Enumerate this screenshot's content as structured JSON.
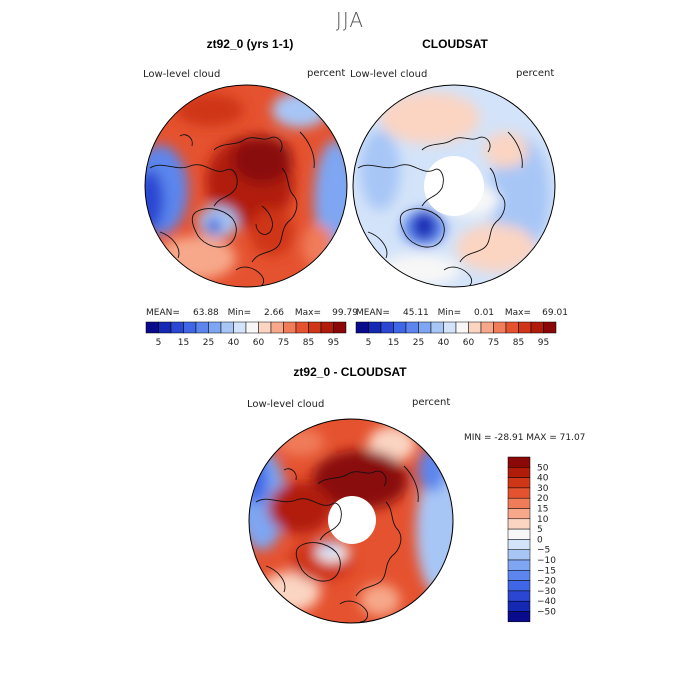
{
  "season_title": "JJA",
  "chart_data": [
    {
      "type": "heatmap",
      "projection": "polar",
      "title": "zt92_0 (yrs 1-1)",
      "field_label": "Low-level cloud",
      "units": "percent",
      "stats": {
        "mean_label": "MEAN=",
        "mean": "63.88",
        "min_label": "Min=",
        "min": "2.66",
        "max_label": "Max=",
        "max": "99.79"
      },
      "colorbar": {
        "levels": [
          5,
          10,
          15,
          20,
          25,
          30,
          40,
          50,
          60,
          70,
          75,
          80,
          85,
          90,
          95
        ],
        "tick_labels": [
          "5",
          "15",
          "25",
          "40",
          "60",
          "75",
          "85",
          "95"
        ],
        "colors": [
          "#0a0a8c",
          "#1428b4",
          "#2a46d2",
          "#3f66e6",
          "#5c86ee",
          "#7ea6f2",
          "#a7c6f6",
          "#d3e3f9",
          "#f7f7f7",
          "#fbd4c2",
          "#f7a88a",
          "#f07c5a",
          "#e5522f",
          "#cf3517",
          "#b11c0a",
          "#8a0808"
        ]
      }
    },
    {
      "type": "heatmap",
      "projection": "polar",
      "title": "CLOUDSAT",
      "field_label": "Low-level cloud",
      "units": "percent",
      "stats": {
        "mean_label": "MEAN=",
        "mean": "45.11",
        "min_label": "Min=",
        "min": "0.01",
        "max_label": "Max=",
        "max": "69.01"
      },
      "colorbar": {
        "levels": [
          5,
          10,
          15,
          20,
          25,
          30,
          40,
          50,
          60,
          70,
          75,
          80,
          85,
          90,
          95
        ],
        "tick_labels": [
          "5",
          "15",
          "25",
          "40",
          "60",
          "75",
          "85",
          "95"
        ],
        "colors": [
          "#0a0a8c",
          "#1428b4",
          "#2a46d2",
          "#3f66e6",
          "#5c86ee",
          "#7ea6f2",
          "#a7c6f6",
          "#d3e3f9",
          "#f7f7f7",
          "#fbd4c2",
          "#f7a88a",
          "#f07c5a",
          "#e5522f",
          "#cf3517",
          "#b11c0a",
          "#8a0808"
        ]
      }
    },
    {
      "type": "heatmap",
      "projection": "polar",
      "title": "zt92_0 - CLOUDSAT",
      "field_label": "Low-level cloud",
      "units": "percent",
      "stats_text": "MIN = -28.91 MAX =  71.07",
      "colorbar": {
        "levels": [
          -50,
          -40,
          -30,
          -20,
          -15,
          -10,
          -5,
          0,
          5,
          10,
          15,
          20,
          30,
          40,
          50
        ],
        "tick_labels": [
          "50",
          "40",
          "30",
          "20",
          "15",
          "10",
          "5",
          "0",
          "−5",
          "−10",
          "−15",
          "−20",
          "−30",
          "−40",
          "−50"
        ],
        "colors": [
          "#8a0808",
          "#b11c0a",
          "#cf3517",
          "#e5522f",
          "#f07c5a",
          "#f7a88a",
          "#fbd4c2",
          "#f7f7f7",
          "#d3e3f9",
          "#a7c6f6",
          "#7ea6f2",
          "#5c86ee",
          "#3f66e6",
          "#2a46d2",
          "#1428b4",
          "#0a0a8c"
        ]
      }
    }
  ]
}
